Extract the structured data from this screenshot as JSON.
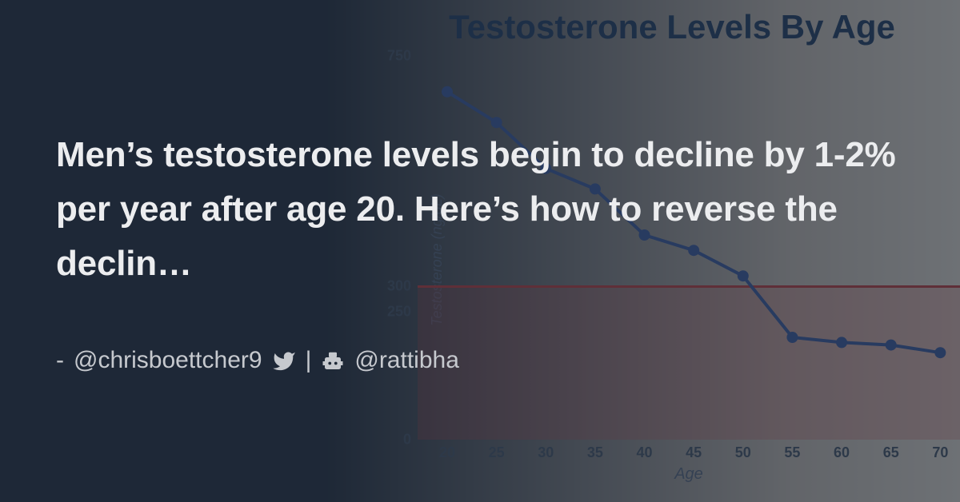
{
  "overlay_text": {
    "headline": "Men’s testosterone levels begin to decline by 1-2% per year after age 20. Here’s how to reverse the declin…",
    "byline_prefix": "-",
    "author_handle": "@chrisboettcher9",
    "separator": "|",
    "site_handle": "@rattibha"
  },
  "chart": {
    "type": "line",
    "title": "Testosterone Levels By Age",
    "x_axis_label": "Age",
    "y_axis_label": "Testosterone (ng/dL)",
    "x_ticks": [
      20,
      25,
      30,
      35,
      40,
      45,
      50,
      55,
      60,
      65,
      70
    ],
    "y_ticks": [
      0,
      250,
      300,
      750
    ],
    "xlim": [
      17,
      72
    ],
    "ylim": [
      0,
      750
    ],
    "series": {
      "x": [
        20,
        25,
        30,
        35,
        40,
        45,
        50,
        55,
        60,
        65,
        70
      ],
      "y": [
        680,
        620,
        530,
        490,
        400,
        370,
        320,
        200,
        190,
        185,
        170
      ],
      "line_color": "#3759a3",
      "line_width": 4,
      "marker_radius": 7,
      "marker_color": "#3759a3"
    },
    "reference_line": {
      "y": 300,
      "color": "#c73a3a",
      "width": 3
    },
    "reference_band": {
      "y_from": 0,
      "y_to": 300,
      "fill": "rgba(214,65,65,0.24)"
    },
    "title_color": "#1c3b63",
    "tick_color": "#465668",
    "axis_label_color": "#5a6a80",
    "title_fontsize": 42,
    "tick_fontsize": 18
  },
  "colors": {
    "bg_dark": "#1e2937",
    "bg_light": "#eee7da",
    "text_light": "#ecedef",
    "byline_text": "#c6c9ce"
  }
}
